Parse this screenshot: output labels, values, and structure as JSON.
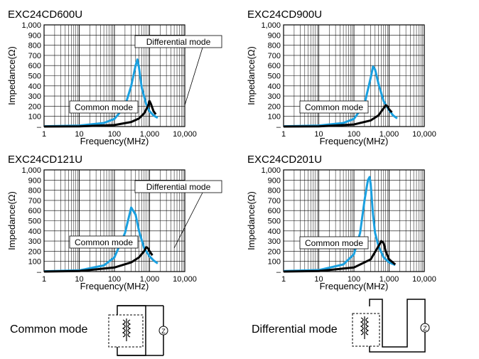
{
  "colors": {
    "common": "#1aa0e0",
    "differential": "#000000",
    "grid": "#000000"
  },
  "labels": {
    "common_mode": "Common mode",
    "differential_mode": "Differential mode"
  },
  "chart_data": [
    {
      "type": "line",
      "title": "EXC24CD600U",
      "xlabel": "Frequency(MHz)",
      "ylabel": "Impedance(Ω)",
      "xscale": "log",
      "xlim": [
        1,
        10000
      ],
      "ylim": [
        0,
        1000
      ],
      "x_ticks": [
        "1",
        "10",
        "100",
        "1,000",
        "10,000"
      ],
      "y_ticks": [
        "–",
        "100",
        "200",
        "300",
        "400",
        "500",
        "600",
        "700",
        "800",
        "900",
        "1,000"
      ],
      "series": [
        {
          "name": "Common mode",
          "x": [
            1,
            10,
            50,
            100,
            200,
            300,
            400,
            450,
            500,
            600,
            800,
            1000,
            1300,
            1700
          ],
          "y": [
            3,
            10,
            35,
            75,
            200,
            400,
            600,
            660,
            580,
            380,
            220,
            150,
            110,
            85
          ]
        },
        {
          "name": "Differential mode",
          "x": [
            1,
            10,
            100,
            300,
            500,
            700,
            900,
            1000,
            1100,
            1300,
            1500
          ],
          "y": [
            0,
            2,
            15,
            45,
            80,
            130,
            200,
            250,
            220,
            150,
            120
          ]
        }
      ]
    },
    {
      "type": "line",
      "title": "EXC24CD900U",
      "xlabel": "Frequency(MHz)",
      "ylabel": "Impedance(Ω)",
      "xscale": "log",
      "xlim": [
        1,
        10000
      ],
      "ylim": [
        0,
        1000
      ],
      "x_ticks": [
        "1",
        "10",
        "100",
        "1,000",
        "10,000"
      ],
      "y_ticks": [
        "–",
        "100",
        "200",
        "300",
        "400",
        "500",
        "600",
        "700",
        "800",
        "900",
        "1,000"
      ],
      "series": [
        {
          "name": "Common mode",
          "x": [
            1,
            10,
            50,
            100,
            200,
            300,
            350,
            400,
            500,
            700,
            1000,
            1300,
            1700
          ],
          "y": [
            3,
            10,
            35,
            75,
            220,
            480,
            590,
            560,
            420,
            250,
            160,
            110,
            80
          ]
        },
        {
          "name": "Differential mode",
          "x": [
            1,
            10,
            100,
            300,
            500,
            700,
            800,
            900,
            1000,
            1200
          ],
          "y": [
            0,
            2,
            20,
            60,
            110,
            180,
            210,
            200,
            170,
            140
          ]
        }
      ]
    },
    {
      "type": "line",
      "title": "EXC24CD121U",
      "xlabel": "Frequency(MHz)",
      "ylabel": "Impedance(Ω)",
      "xscale": "log",
      "xlim": [
        1,
        10000
      ],
      "ylim": [
        0,
        1000
      ],
      "x_ticks": [
        "1",
        "10",
        "100",
        "1,000",
        "10,000"
      ],
      "y_ticks": [
        "–",
        "100",
        "200",
        "300",
        "400",
        "500",
        "600",
        "700",
        "800",
        "900",
        "1,000"
      ],
      "series": [
        {
          "name": "Common mode",
          "x": [
            1,
            10,
            50,
            100,
            200,
            300,
            400,
            500,
            700,
            1000,
            1300,
            1700
          ],
          "y": [
            3,
            12,
            60,
            140,
            380,
            630,
            560,
            400,
            230,
            150,
            110,
            80
          ]
        },
        {
          "name": "Differential mode",
          "x": [
            1,
            10,
            100,
            300,
            500,
            700,
            800,
            900,
            1000,
            1200
          ],
          "y": [
            0,
            5,
            40,
            90,
            140,
            200,
            240,
            230,
            200,
            160
          ]
        }
      ]
    },
    {
      "type": "line",
      "title": "EXC24CD201U",
      "xlabel": "Frequency(MHz)",
      "ylabel": "Impedance(Ω)",
      "xscale": "log",
      "xlim": [
        1,
        10000
      ],
      "ylim": [
        0,
        1000
      ],
      "x_ticks": [
        "1",
        "10",
        "100",
        "1,000",
        "10,000"
      ],
      "y_ticks": [
        "–",
        "100",
        "200",
        "300",
        "400",
        "500",
        "600",
        "700",
        "800",
        "900",
        "1,000"
      ],
      "series": [
        {
          "name": "Common mode",
          "x": [
            1,
            10,
            50,
            100,
            150,
            200,
            250,
            280,
            300,
            350,
            400,
            500,
            700,
            1000,
            1500
          ],
          "y": [
            5,
            15,
            70,
            170,
            380,
            700,
            900,
            930,
            860,
            560,
            380,
            250,
            140,
            90,
            65
          ]
        },
        {
          "name": "Differential mode",
          "x": [
            1,
            10,
            100,
            300,
            500,
            600,
            700,
            800,
            1000,
            1500
          ],
          "y": [
            0,
            5,
            40,
            120,
            250,
            300,
            280,
            200,
            120,
            70
          ]
        }
      ]
    }
  ]
}
